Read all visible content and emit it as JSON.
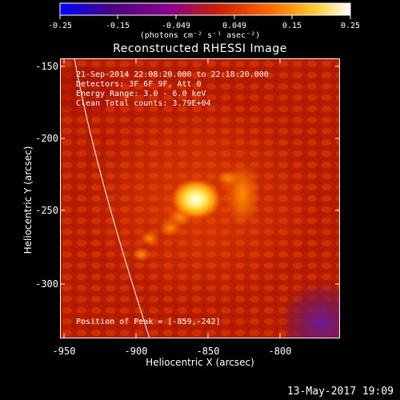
{
  "colorbar": {
    "ticks": [
      "-0.25",
      "-0.15",
      "-0.049",
      "0.049",
      "0.15",
      "0.25"
    ],
    "unit_label": "(photons cm⁻² s⁻¹ asec⁻²)",
    "colormap": [
      "#0000ff",
      "#4b0082",
      "#8b008b",
      "#cc2200",
      "#ff6600",
      "#ffcc33",
      "#ffffff"
    ]
  },
  "title": "Reconstructed RHESSI Image",
  "info": {
    "time": "21-Sep-2014 22:08:20.000 to 22:18:20.000",
    "detectors": "Detectors: 3F 6F 9F, Att 0",
    "energy": "Energy Range: 3.0 - 6.0 keV",
    "clean": "Clean    Total counts: 3.79E+04",
    "peak": "Position of Peak = [-859,-242]"
  },
  "chart_data": {
    "type": "heatmap",
    "title": "Reconstructed RHESSI Image",
    "xlabel": "Heliocentric X (arcsec)",
    "ylabel": "Heliocentric Y (arcsec)",
    "xlim": [
      -955,
      -825
    ],
    "ylim": [
      -335,
      -145
    ],
    "x_ticks": [
      "-950",
      "-900",
      "-850",
      "-800"
    ],
    "y_ticks": [
      "-150",
      "-200",
      "-250",
      "-300"
    ],
    "color_range": [
      -0.25,
      0.25
    ],
    "peak": [
      -859,
      -242
    ]
  },
  "timestamp": "13-May-2017 19:09"
}
